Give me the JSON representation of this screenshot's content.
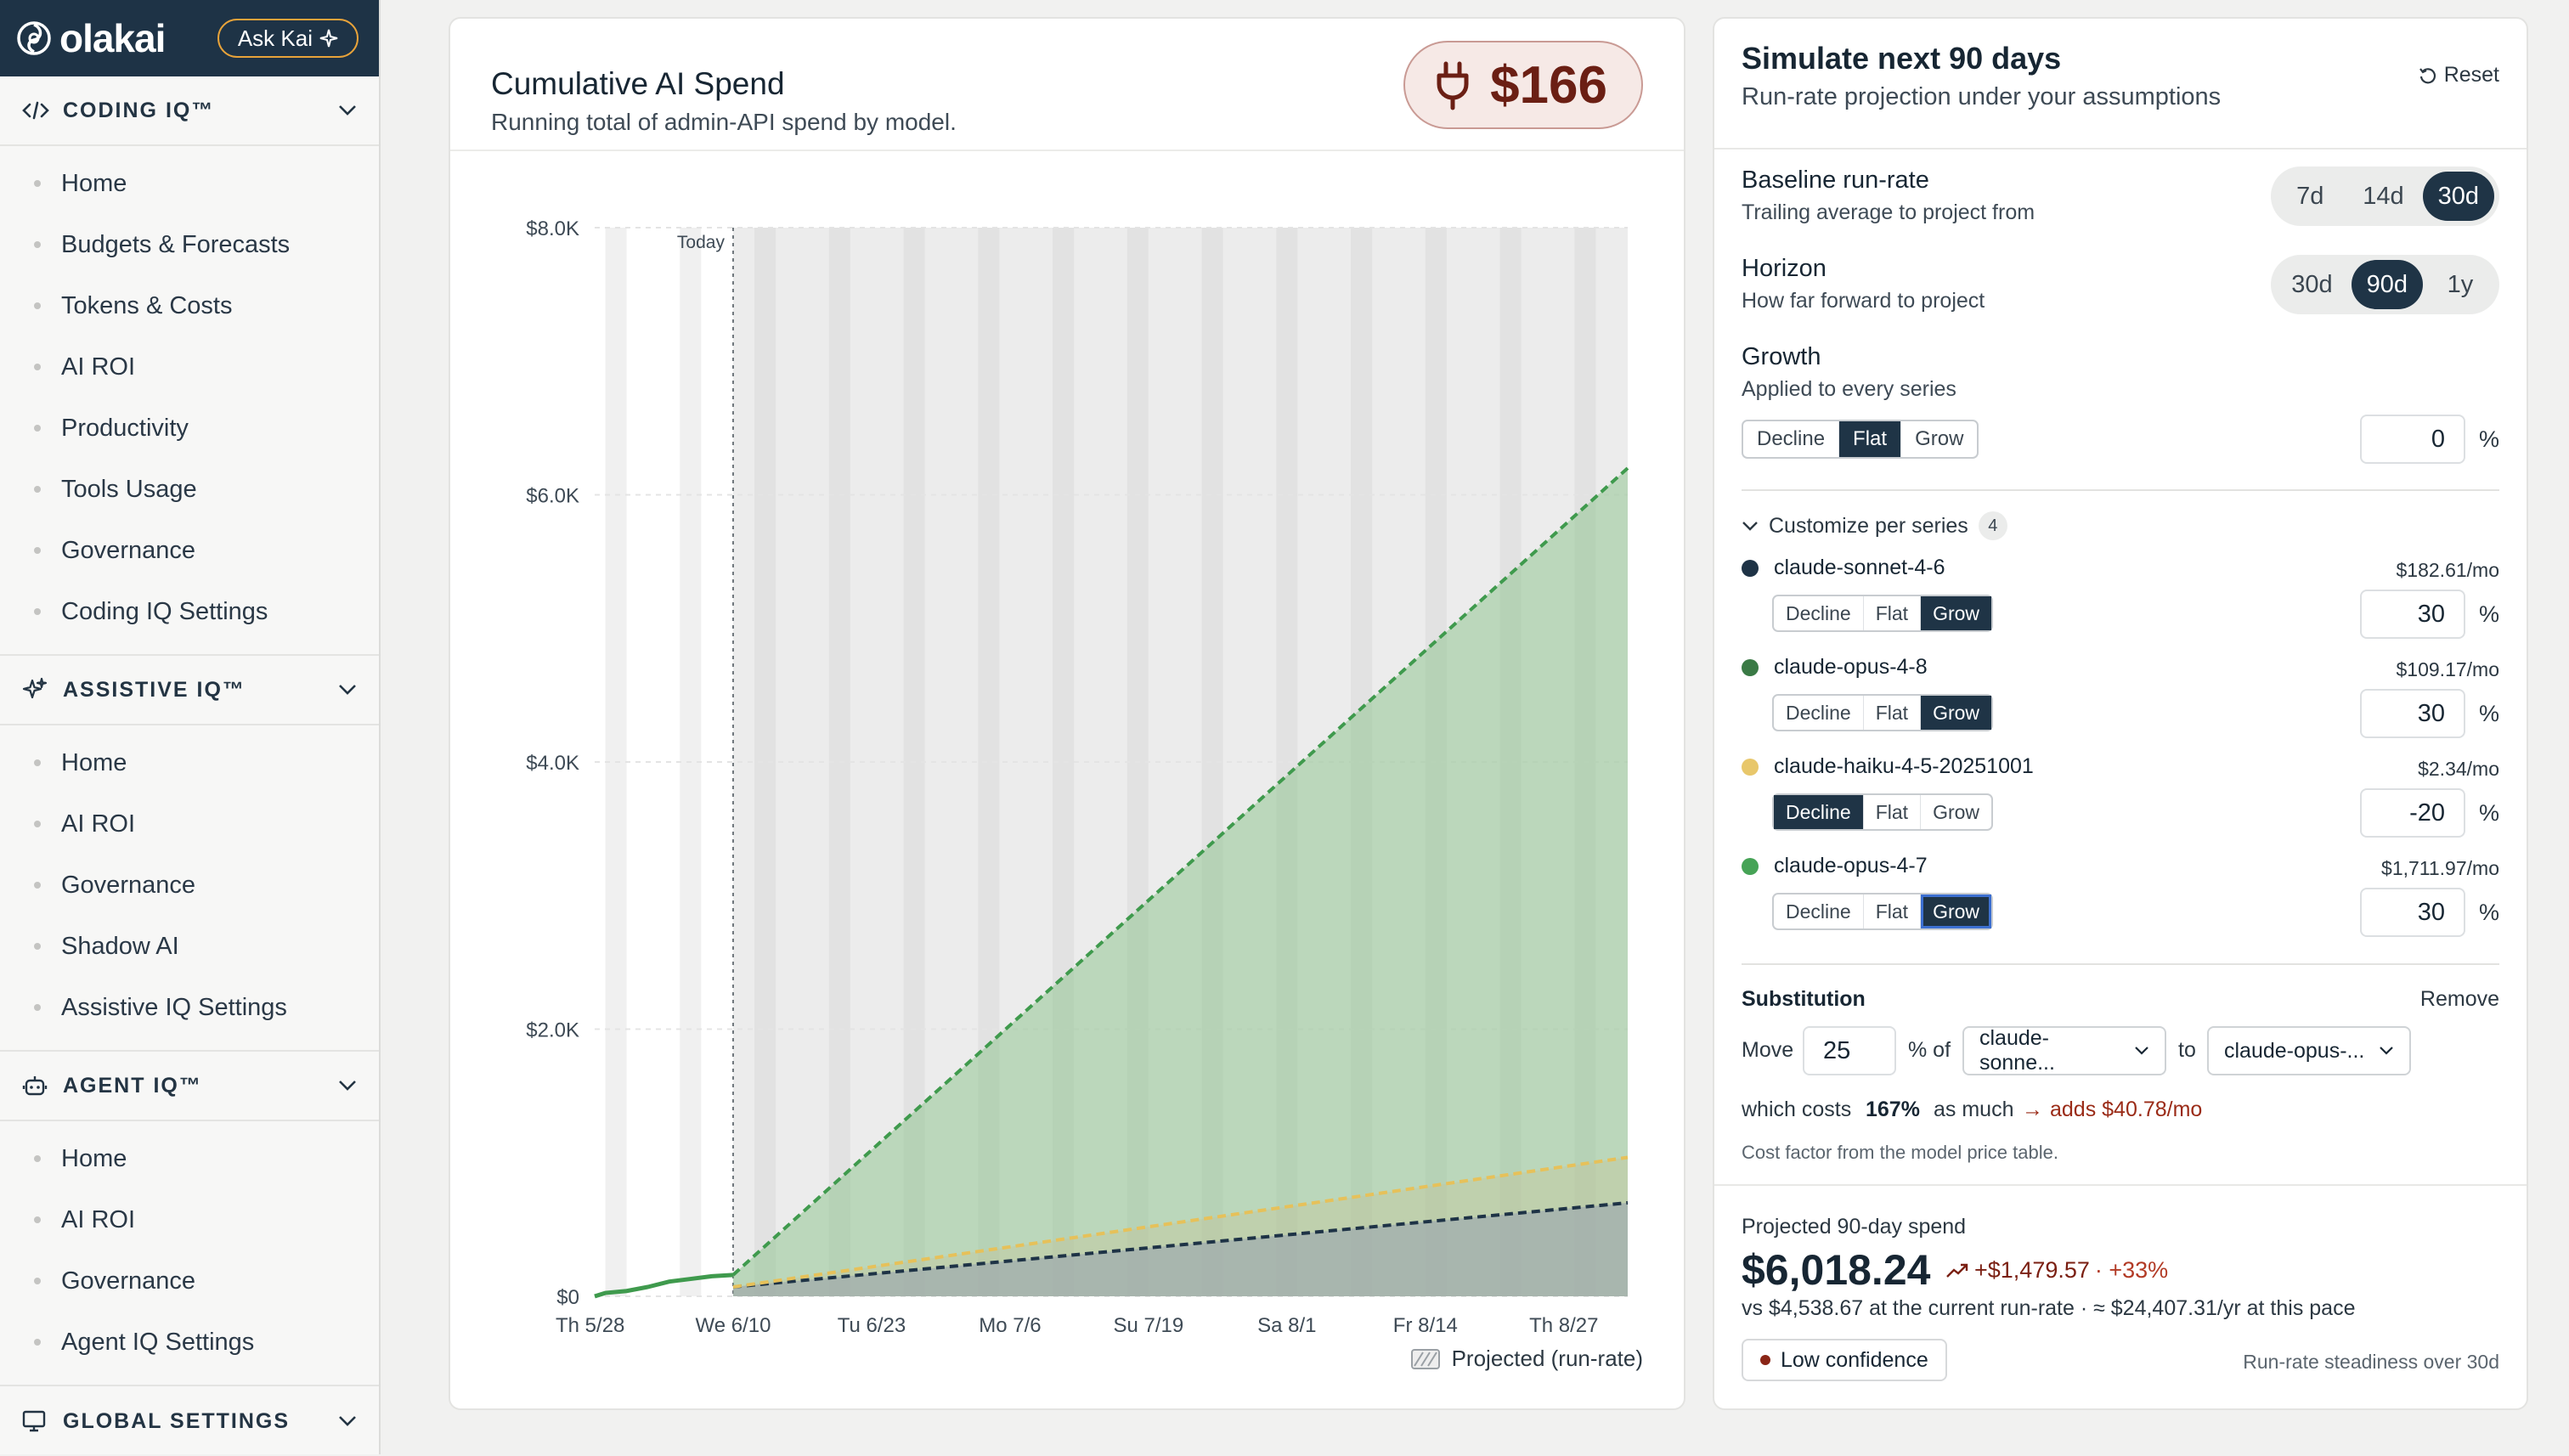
{
  "app": {
    "brand": "olakai",
    "ask_kai": "Ask Kai"
  },
  "sidebar": {
    "sections": [
      {
        "title": "CODING IQ™",
        "icon": "code-icon",
        "items": [
          "Home",
          "Budgets & Forecasts",
          "Tokens & Costs",
          "AI ROI",
          "Productivity",
          "Tools Usage",
          "Governance",
          "Coding IQ Settings"
        ]
      },
      {
        "title": "ASSISTIVE IQ™",
        "icon": "sparkle-icon",
        "items": [
          "Home",
          "AI ROI",
          "Governance",
          "Shadow AI",
          "Assistive IQ Settings"
        ]
      },
      {
        "title": "AGENT IQ™",
        "icon": "robot-icon",
        "items": [
          "Home",
          "AI ROI",
          "Governance",
          "Agent IQ Settings"
        ]
      },
      {
        "title": "GLOBAL SETTINGS",
        "icon": "monitor-settings-icon",
        "items": []
      }
    ]
  },
  "chart_panel": {
    "title": "Cumulative AI Spend",
    "subtitle": "Running total of admin-API spend by model.",
    "total_spend": "$166",
    "legend_label": "Projected (run-rate)"
  },
  "chart_data": {
    "type": "area",
    "title": "Cumulative AI Spend",
    "xlabel": "",
    "ylabel": "",
    "x_ticks": [
      "Th 5/28",
      "We 6/10",
      "Tu 6/23",
      "Mo 7/6",
      "Su 7/19",
      "Sa 8/1",
      "Fr 8/14",
      "Th 8/27"
    ],
    "y_ticks": [
      "$0",
      "$2.0K",
      "$4.0K",
      "$6.0K",
      "$8.0K"
    ],
    "ylim": [
      0,
      8000
    ],
    "x_range_days": [
      0,
      97
    ],
    "today_day": 13,
    "today_label": "Today",
    "grid": true,
    "stacked": true,
    "series": [
      {
        "name": "claude-sonnet-4-6",
        "color": "#1e3346",
        "historical": [
          [
            0,
            0
          ],
          [
            13,
            70
          ]
        ],
        "projected": [
          [
            13,
            70
          ],
          [
            97,
            700
          ]
        ]
      },
      {
        "name": "claude-haiku-4-5-20251001",
        "color": "#e6c15a",
        "historical": [
          [
            0,
            0
          ],
          [
            13,
            70
          ]
        ],
        "projected": [
          [
            13,
            70
          ],
          [
            97,
            1040
          ]
        ]
      },
      {
        "name": "claude-opus-4-7",
        "color": "#3f9a4d",
        "historical": [
          [
            0,
            0
          ],
          [
            1,
            25
          ],
          [
            3,
            40
          ],
          [
            5,
            70
          ],
          [
            7,
            110
          ],
          [
            9,
            130
          ],
          [
            11,
            150
          ],
          [
            13,
            160
          ]
        ],
        "projected": [
          [
            13,
            160
          ],
          [
            97,
            6200
          ]
        ]
      }
    ]
  },
  "simulation": {
    "title": "Simulate next 90 days",
    "subtitle": "Run-rate projection under your assumptions",
    "reset_label": "Reset",
    "baseline": {
      "label": "Baseline run-rate",
      "help": "Trailing average to project from",
      "options": [
        "7d",
        "14d",
        "30d"
      ],
      "selected": "30d"
    },
    "horizon": {
      "label": "Horizon",
      "help": "How far forward to project",
      "options": [
        "30d",
        "90d",
        "1y"
      ],
      "selected": "90d"
    },
    "growth": {
      "label": "Growth",
      "help": "Applied to every series",
      "options": [
        "Decline",
        "Flat",
        "Grow"
      ],
      "selected": "Flat",
      "value": "0",
      "unit": "%"
    },
    "customize": {
      "label": "Customize per series",
      "count": "4"
    },
    "series": [
      {
        "name": "claude-sonnet-4-6",
        "color": "#1e3346",
        "cost": "$182.61/mo",
        "mode": "Grow",
        "value": "30"
      },
      {
        "name": "claude-opus-4-8",
        "color": "#3a7a45",
        "cost": "$109.17/mo",
        "mode": "Grow",
        "value": "30"
      },
      {
        "name": "claude-haiku-4-5-20251001",
        "color": "#e8c76b",
        "cost": "$2.34/mo",
        "mode": "Decline",
        "value": "-20"
      },
      {
        "name": "claude-opus-4-7",
        "color": "#46a356",
        "cost": "$1,711.97/mo",
        "mode": "Grow",
        "value": "30"
      }
    ],
    "substitution": {
      "label": "Substitution",
      "remove": "Remove",
      "move": "Move",
      "value": "25",
      "pct_of": "% of",
      "from_model": "claude-sonne...",
      "to": "to",
      "to_model": "claude-opus-...",
      "which_costs": "which costs",
      "cost_ratio": "167%",
      "as_much": "as much",
      "adds": "adds $40.78/mo",
      "note": "Cost factor from the model price table."
    },
    "projection": {
      "label": "Projected 90-day spend",
      "value": "$6,018.24",
      "delta": "+$1,479.57",
      "delta_pct": "· +33%",
      "comparison": "vs $4,538.67 at the current run-rate · ≈ $24,407.31/yr at this pace",
      "confidence": "Low confidence",
      "steadiness": "Run-rate steadiness over 30d"
    }
  }
}
